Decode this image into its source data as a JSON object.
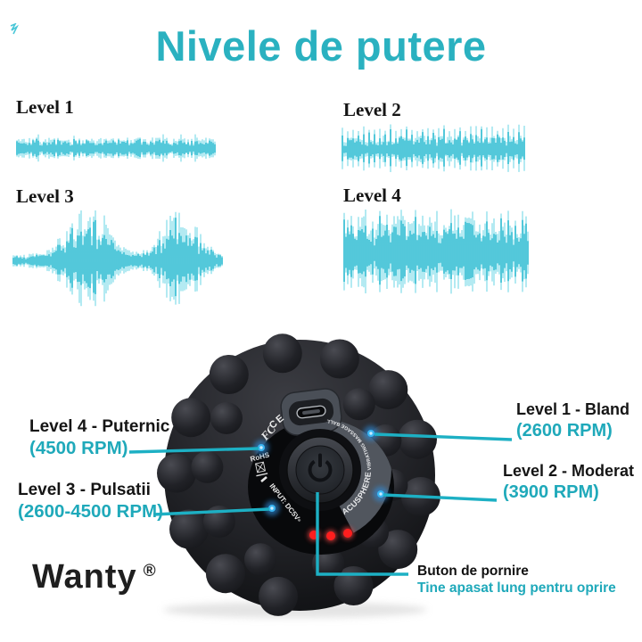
{
  "title": "Nivele de putere",
  "colors": {
    "accent": "#2ab1c0",
    "wave": "#2fbcd2",
    "wave_light": "#a6e7f0",
    "line": "#1db0c4",
    "label_teal": "#1fa9ba",
    "led_red": "#ff1e1e",
    "dot_blue": "#3ab5f2"
  },
  "waves": [
    {
      "label": "Level 1",
      "style": "noise",
      "amp": 0.82,
      "seed": 7,
      "description": "continuous low-amplitude vibration"
    },
    {
      "label": "Level 2",
      "style": "spikes",
      "amp": 0.95,
      "seed": 13,
      "description": "continuous medium vibration with regular spikes"
    },
    {
      "label": "Level 3",
      "style": "bursts",
      "amp": 1.0,
      "seed": 5,
      "description": "pulsating bursts separated by quiet intervals"
    },
    {
      "label": "Level 4",
      "style": "dense",
      "amp": 1.0,
      "seed": 9,
      "description": "continuous strong high-amplitude vibration"
    }
  ],
  "callouts": {
    "level4": {
      "name": "Level 4 - Puternic",
      "rpm": "(4500 RPM)"
    },
    "level3": {
      "name": "Level 3 - Pulsatii",
      "rpm": "(2600-4500 RPM)"
    },
    "level1": {
      "name": "Level 1 - Bland",
      "rpm": "(2600 RPM)"
    },
    "level2": {
      "name": "Level 2 - Moderat",
      "rpm": "(3900 RPM)"
    },
    "power": {
      "name": "Buton de pornire",
      "note": "Tine apasat lung pentru oprire"
    }
  },
  "brand": {
    "name": "Wanty",
    "registered": "®"
  },
  "device": {
    "fcc": "FC",
    "ce": "CE",
    "rohs": "RoHS",
    "input": "INPUT: DC5V",
    "dc_symbol": "≡",
    "ring_primary": "ACUSPHERE",
    "ring_secondary": " VIBRATING MASSAGE BALL"
  }
}
